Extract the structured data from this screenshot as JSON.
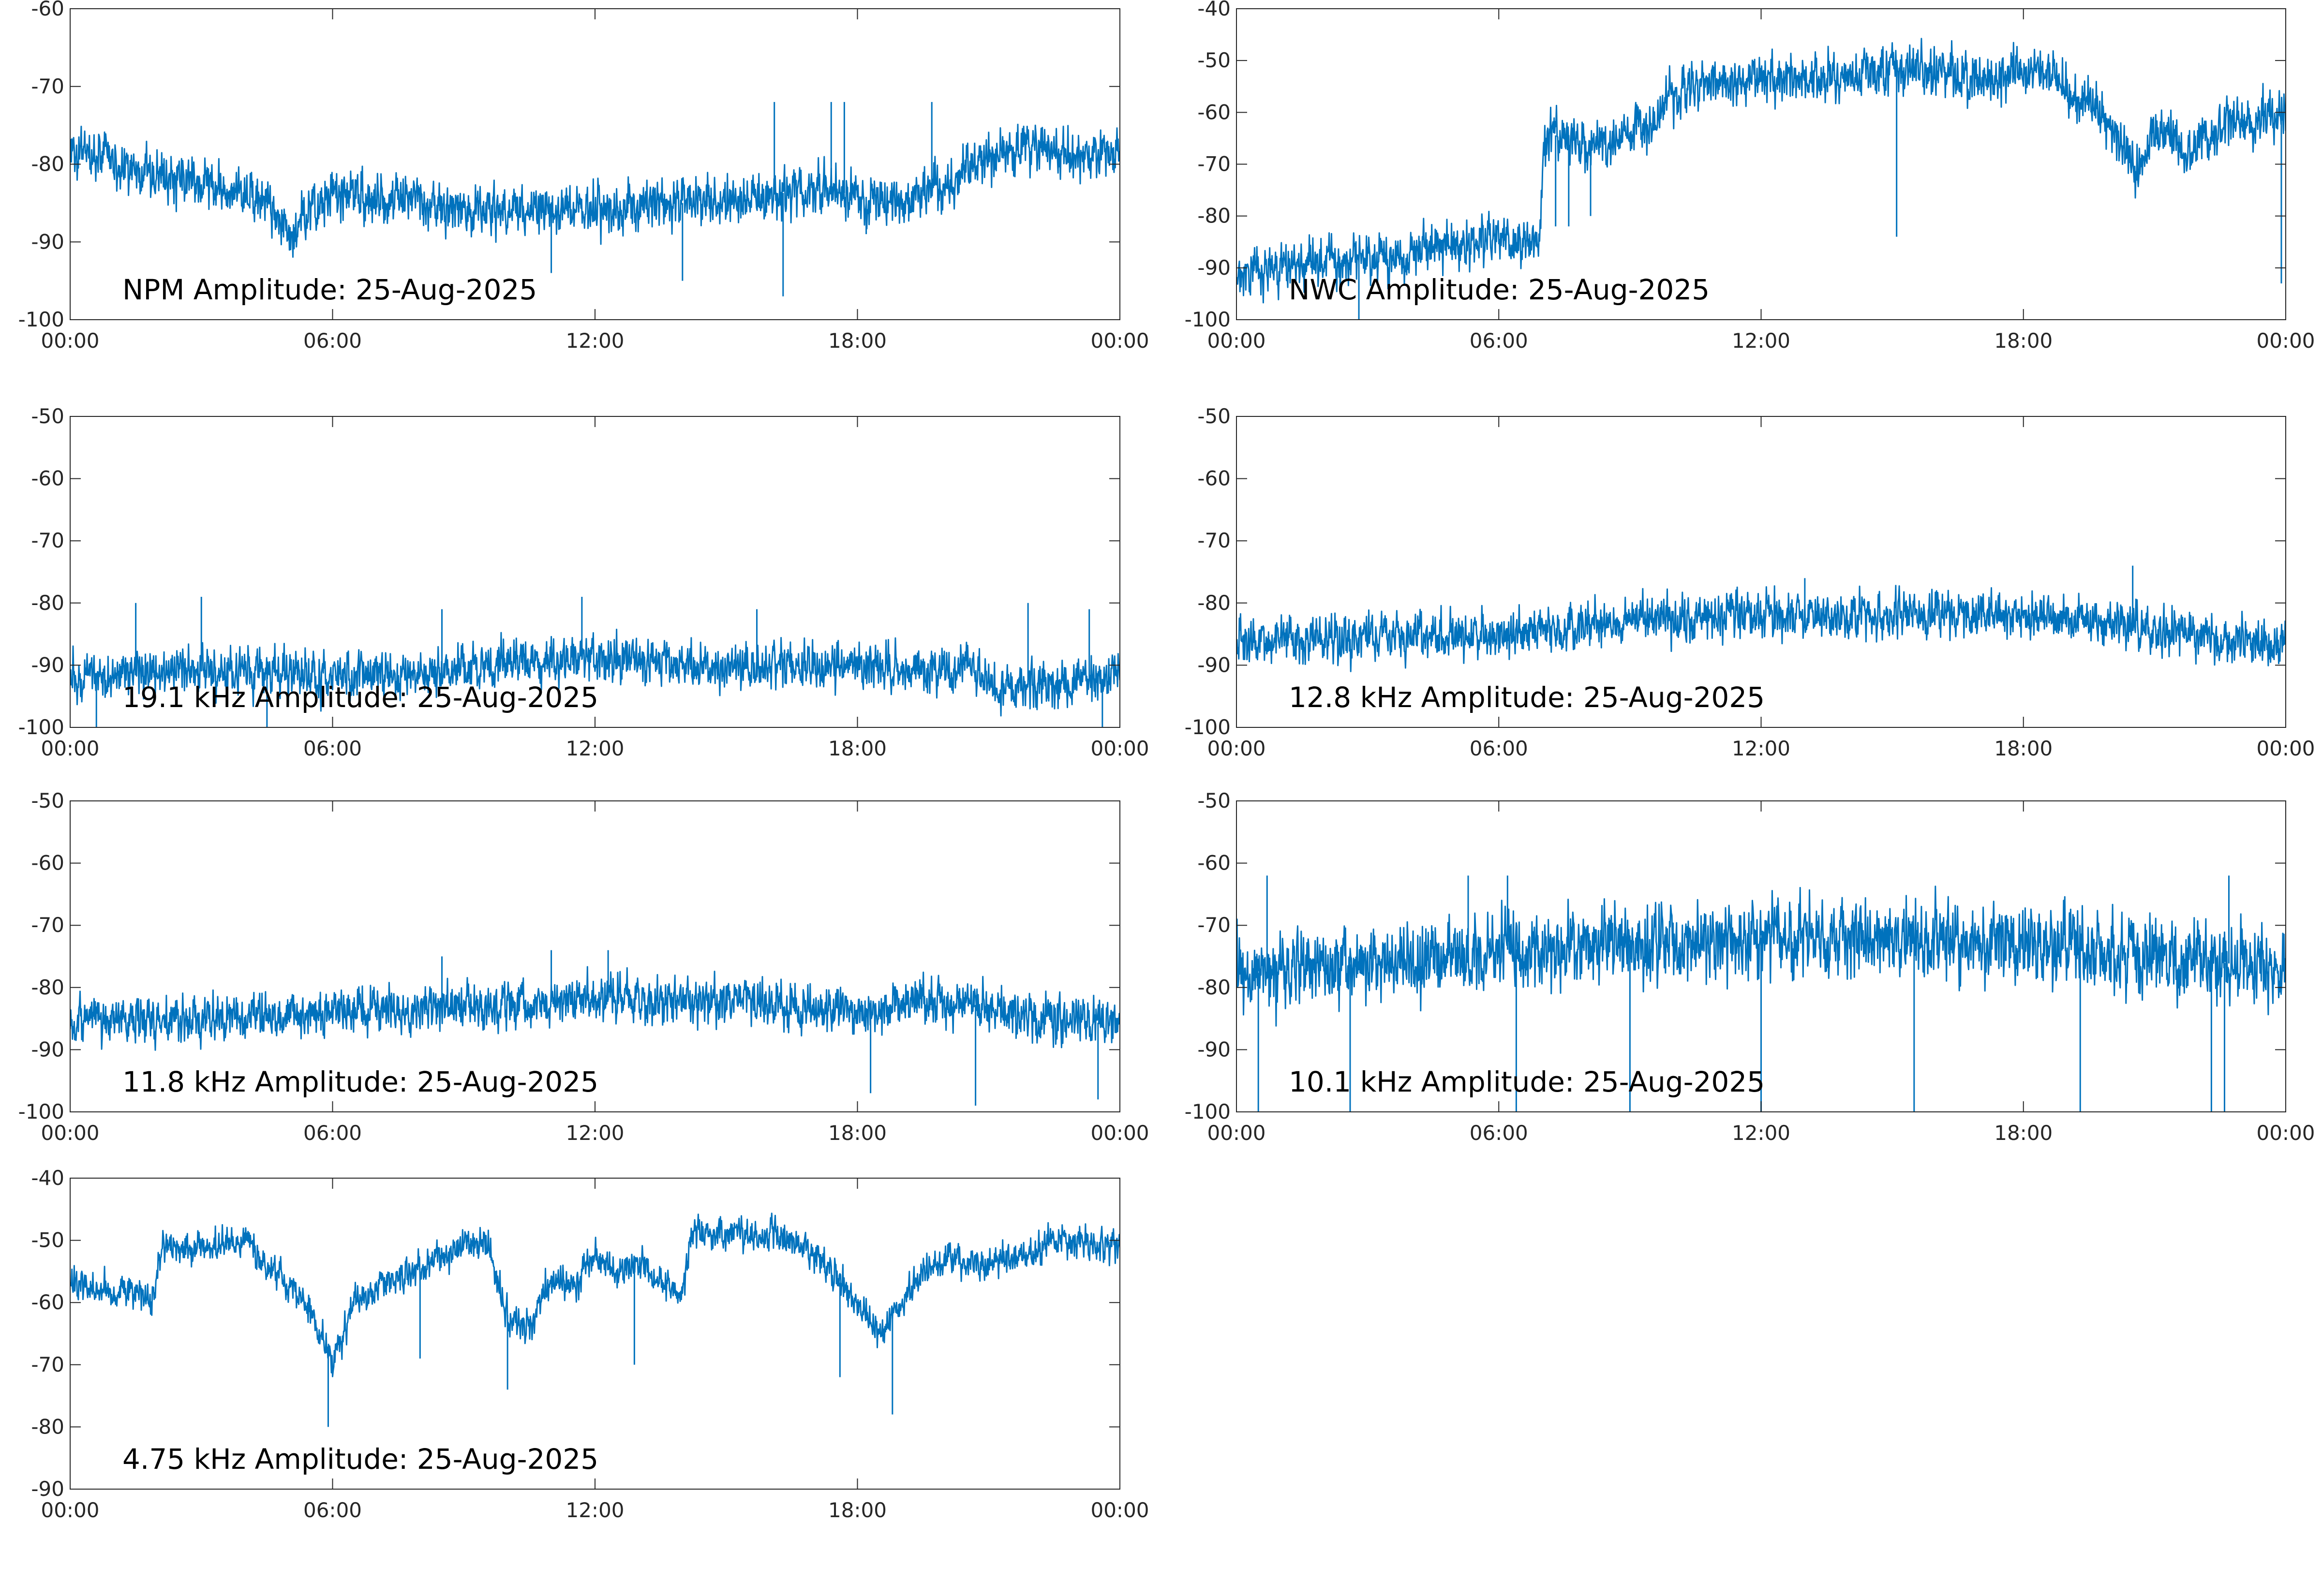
{
  "figure": {
    "background": "#ffffff",
    "axis_color": "#262626",
    "line_color": "#0072bd",
    "x_ticks": [
      "00:00",
      "06:00",
      "12:00",
      "18:00",
      "00:00"
    ],
    "grid": false
  },
  "chart_data": [
    {
      "type": "line",
      "title": "NPM Amplitude: 25-Aug-2025",
      "xlabel": "",
      "ylabel": "",
      "xlim": [
        "00:00",
        "24:00"
      ],
      "ylim": [
        -100,
        -60
      ],
      "yticks": [
        -100,
        -90,
        -80,
        -70,
        -60
      ],
      "color": "#0072bd",
      "noise": 3,
      "x_hours": [
        0,
        0.3,
        1.5,
        3,
        4.5,
        5.1,
        5.5,
        6,
        7,
        8,
        9,
        10.5,
        12,
        13.5,
        15,
        16,
        17,
        18,
        19,
        20,
        21,
        22,
        23,
        24
      ],
      "y": [
        -79,
        -78,
        -81,
        -82,
        -85,
        -89,
        -86,
        -84,
        -84,
        -85,
        -86,
        -86,
        -86,
        -85,
        -85,
        -84,
        -83,
        -84,
        -85,
        -83,
        -79,
        -78,
        -79,
        -79
      ],
      "spikes": [
        {
          "x": 16.1,
          "y": -72
        },
        {
          "x": 17.4,
          "y": -72
        },
        {
          "x": 17.7,
          "y": -72
        },
        {
          "x": 19.7,
          "y": -72
        },
        {
          "x": 16.3,
          "y": -97
        },
        {
          "x": 11.0,
          "y": -94
        },
        {
          "x": 14.0,
          "y": -95
        },
        {
          "x": 18.2,
          "y": -89
        }
      ]
    },
    {
      "type": "line",
      "title": "NWC Amplitude: 25-Aug-2025",
      "xlabel": "",
      "ylabel": "",
      "xlim": [
        "00:00",
        "24:00"
      ],
      "ylim": [
        -100,
        -40
      ],
      "yticks": [
        -100,
        -90,
        -80,
        -70,
        -60,
        -50,
        -40
      ],
      "color": "#0072bd",
      "noise": 4.5,
      "x_hours": [
        0,
        1,
        2,
        3,
        4,
        5,
        6,
        6.9,
        7.05,
        7.5,
        8,
        8.5,
        9,
        9.5,
        10,
        10.5,
        11,
        12,
        13,
        14,
        15,
        16,
        17,
        18,
        18.7,
        19.2,
        19.8,
        20.3,
        20.6,
        20.9,
        21.3,
        21.7,
        22,
        22.5,
        23,
        24
      ],
      "y": [
        -91,
        -90,
        -89,
        -88,
        -87,
        -86,
        -85,
        -85,
        -65,
        -64,
        -66,
        -66,
        -63,
        -62,
        -57,
        -55,
        -54,
        -53.5,
        -54,
        -53,
        -51.5,
        -52,
        -54,
        -52,
        -51.5,
        -57,
        -60,
        -66,
        -72,
        -66,
        -63,
        -70,
        -66,
        -63,
        -62,
        -60
      ],
      "spikes": [
        {
          "x": 15.1,
          "y": -84
        },
        {
          "x": 23.9,
          "y": -93
        },
        {
          "x": 7.3,
          "y": -82
        },
        {
          "x": 7.6,
          "y": -82
        },
        {
          "x": 8.1,
          "y": -80
        },
        {
          "x": 2.8,
          "y": -100
        }
      ]
    },
    {
      "type": "line",
      "title": "19.1 kHz Amplitude: 25-Aug-2025",
      "xlabel": "",
      "ylabel": "",
      "xlim": [
        "00:00",
        "24:00"
      ],
      "ylim": [
        -100,
        -50
      ],
      "yticks": [
        -100,
        -90,
        -80,
        -70,
        -60,
        -50
      ],
      "color": "#0072bd",
      "noise": 3.5,
      "x_hours": [
        0,
        3,
        6,
        8,
        10,
        12,
        14,
        16,
        18,
        19.5,
        20.5,
        21.2,
        22,
        24
      ],
      "y": [
        -92,
        -91,
        -92,
        -91,
        -90,
        -89,
        -90,
        -90,
        -90,
        -91,
        -90,
        -94,
        -93,
        -92
      ],
      "spikes": [
        {
          "x": 1.5,
          "y": -80
        },
        {
          "x": 3.0,
          "y": -79
        },
        {
          "x": 8.5,
          "y": -81
        },
        {
          "x": 11.7,
          "y": -79
        },
        {
          "x": 15.7,
          "y": -81
        },
        {
          "x": 21.9,
          "y": -80
        },
        {
          "x": 23.3,
          "y": -81
        },
        {
          "x": 0.6,
          "y": -100
        },
        {
          "x": 4.5,
          "y": -100
        },
        {
          "x": 23.6,
          "y": -100
        }
      ]
    },
    {
      "type": "line",
      "title": "12.8 kHz Amplitude: 25-Aug-2025",
      "xlabel": "",
      "ylabel": "",
      "xlim": [
        "00:00",
        "24:00"
      ],
      "ylim": [
        -100,
        -50
      ],
      "yticks": [
        -100,
        -90,
        -80,
        -70,
        -60,
        -50
      ],
      "color": "#0072bd",
      "noise": 3.5,
      "x_hours": [
        0,
        3,
        6,
        9,
        12,
        15,
        18,
        20,
        22,
        24
      ],
      "y": [
        -86,
        -86,
        -85,
        -83,
        -82,
        -82,
        -82,
        -83,
        -85,
        -87
      ],
      "spikes": [
        {
          "x": 20.5,
          "y": -74
        },
        {
          "x": 13.0,
          "y": -76
        }
      ]
    },
    {
      "type": "line",
      "title": "11.8 kHz Amplitude: 25-Aug-2025",
      "xlabel": "",
      "ylabel": "",
      "xlim": [
        "00:00",
        "24:00"
      ],
      "ylim": [
        -100,
        -50
      ],
      "yticks": [
        -100,
        -90,
        -80,
        -70,
        -60,
        -50
      ],
      "color": "#0072bd",
      "noise": 3.5,
      "x_hours": [
        0,
        3,
        6,
        9,
        12,
        15,
        18,
        19.5,
        21,
        22.5,
        24
      ],
      "y": [
        -85,
        -85,
        -84,
        -83,
        -82,
        -82,
        -84,
        -82,
        -83,
        -85,
        -86
      ],
      "spikes": [
        {
          "x": 11.0,
          "y": -74
        },
        {
          "x": 12.3,
          "y": -74
        },
        {
          "x": 18.3,
          "y": -97
        },
        {
          "x": 20.7,
          "y": -99
        },
        {
          "x": 23.5,
          "y": -98
        },
        {
          "x": 8.5,
          "y": -75
        }
      ]
    },
    {
      "type": "line",
      "title": "10.1 kHz Amplitude: 25-Aug-2025",
      "xlabel": "",
      "ylabel": "",
      "xlim": [
        "00:00",
        "24:00"
      ],
      "ylim": [
        -100,
        -50
      ],
      "yticks": [
        -100,
        -90,
        -80,
        -70,
        -60,
        -50
      ],
      "color": "#0072bd",
      "noise": 6,
      "x_hours": [
        0,
        3,
        6,
        9,
        12,
        15,
        18,
        19.5,
        21,
        22.5,
        24
      ],
      "y": [
        -78,
        -76,
        -74,
        -73,
        -72,
        -72,
        -73,
        -74,
        -75,
        -76,
        -77
      ],
      "spikes": [
        {
          "x": 0.5,
          "y": -100
        },
        {
          "x": 2.6,
          "y": -100
        },
        {
          "x": 6.4,
          "y": -100
        },
        {
          "x": 9.0,
          "y": -100
        },
        {
          "x": 12.0,
          "y": -100
        },
        {
          "x": 15.5,
          "y": -100
        },
        {
          "x": 19.3,
          "y": -100
        },
        {
          "x": 22.3,
          "y": -100
        },
        {
          "x": 22.6,
          "y": -100
        },
        {
          "x": 0.7,
          "y": -62
        },
        {
          "x": 5.3,
          "y": -62
        },
        {
          "x": 6.2,
          "y": -62
        },
        {
          "x": 22.7,
          "y": -62
        }
      ]
    },
    {
      "type": "line",
      "title": "4.75 kHz Amplitude: 25-Aug-2025",
      "xlabel": "",
      "ylabel": "",
      "xlim": [
        "00:00",
        "24:00"
      ],
      "ylim": [
        -90,
        -40
      ],
      "yticks": [
        -90,
        -80,
        -70,
        -60,
        -50,
        -40
      ],
      "color": "#0072bd",
      "noise": 2.5,
      "x_hours": [
        0,
        1,
        1.9,
        2.1,
        3,
        4,
        4.5,
        5,
        5.6,
        6,
        6.5,
        7,
        7.5,
        8,
        8.5,
        9,
        9.5,
        10,
        10.5,
        11,
        11.5,
        12,
        12.5,
        13,
        13.5,
        14,
        14.2,
        15,
        16,
        17,
        17.5,
        18,
        18.5,
        19,
        19.5,
        20,
        21,
        22,
        22.5,
        23,
        24
      ],
      "y": [
        -57,
        -58,
        -59,
        -51,
        -51,
        -50,
        -54,
        -57,
        -63,
        -70,
        -60,
        -58,
        -56,
        -55,
        -52,
        -51,
        -50,
        -62,
        -64,
        -56,
        -58,
        -52,
        -55,
        -53,
        -57,
        -58,
        -49,
        -49,
        -49,
        -52,
        -56,
        -60,
        -65,
        -60,
        -55,
        -53,
        -54,
        -52,
        -50,
        -50,
        -51
      ],
      "spikes": [
        {
          "x": 5.9,
          "y": -80
        },
        {
          "x": 18.8,
          "y": -78
        },
        {
          "x": 10.0,
          "y": -74
        },
        {
          "x": 12.9,
          "y": -70
        },
        {
          "x": 8.0,
          "y": -69
        },
        {
          "x": 17.6,
          "y": -72
        }
      ]
    }
  ]
}
